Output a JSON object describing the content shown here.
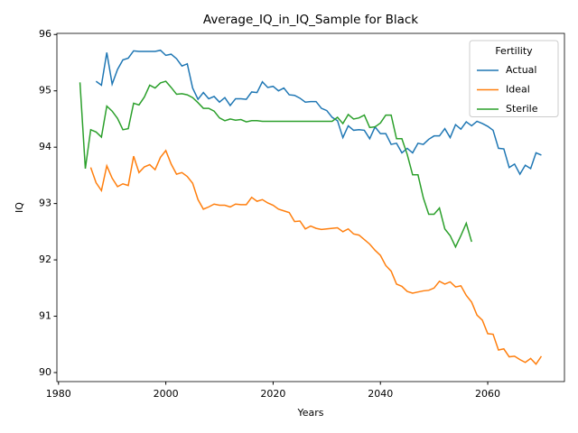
{
  "chart_data": {
    "type": "line",
    "title": "Average_IQ_in_IQ_Sample for Black",
    "x_label": "Years",
    "y_label": "IQ",
    "x": [
      1984,
      1985,
      1986,
      1987,
      1988,
      1989,
      1990,
      1991,
      1992,
      1993,
      1994,
      1995,
      1996,
      1997,
      1998,
      1999,
      2000,
      2001,
      2002,
      2003,
      2004,
      2005,
      2006,
      2007,
      2008,
      2009,
      2010,
      2011,
      2012,
      2013,
      2014,
      2015,
      2016,
      2017,
      2018,
      2019,
      2020,
      2021,
      2022,
      2023,
      2024,
      2025,
      2026,
      2027,
      2028,
      2029,
      2030,
      2031,
      2032,
      2033,
      2034,
      2035,
      2036,
      2037,
      2038,
      2039,
      2040,
      2041,
      2042,
      2043,
      2044,
      2045,
      2046,
      2047,
      2048,
      2049,
      2050,
      2051,
      2052,
      2053,
      2054,
      2055,
      2056,
      2057,
      2058,
      2059,
      2060,
      2061,
      2062,
      2063,
      2064,
      2065,
      2066,
      2067,
      2068,
      2069,
      2070
    ],
    "series": [
      {
        "name": "Actual",
        "color": "#1f77b4",
        "values": [
          null,
          null,
          null,
          95.17,
          95.1,
          95.68,
          95.12,
          95.38,
          95.55,
          95.58,
          95.71,
          95.7,
          95.7,
          95.7,
          95.7,
          95.72,
          95.63,
          95.65,
          95.57,
          95.44,
          95.48,
          95.05,
          94.85,
          94.97,
          94.86,
          94.9,
          94.8,
          94.88,
          94.74,
          94.86,
          94.86,
          94.85,
          94.98,
          94.97,
          95.16,
          95.06,
          95.08,
          95.0,
          95.05,
          94.93,
          94.92,
          94.87,
          94.8,
          94.81,
          94.81,
          94.69,
          94.65,
          94.53,
          94.47,
          94.17,
          94.38,
          94.3,
          94.31,
          94.3,
          94.15,
          94.36,
          94.24,
          94.24,
          94.05,
          94.07,
          93.9,
          93.98,
          93.9,
          94.07,
          94.05,
          94.14,
          94.2,
          94.2,
          94.33,
          94.17,
          94.4,
          94.32,
          94.45,
          94.38,
          94.46,
          94.42,
          94.37,
          94.3,
          93.98,
          93.97,
          93.64,
          93.7,
          93.52,
          93.68,
          93.62,
          93.9,
          93.86
        ]
      },
      {
        "name": "Ideal",
        "color": "#ff7f0e",
        "values": [
          null,
          null,
          93.64,
          93.37,
          93.23,
          93.67,
          93.45,
          93.3,
          93.35,
          93.32,
          93.84,
          93.55,
          93.65,
          93.69,
          93.6,
          93.82,
          93.94,
          93.7,
          93.52,
          93.55,
          93.48,
          93.36,
          93.07,
          92.9,
          92.94,
          92.99,
          92.97,
          92.97,
          92.94,
          92.99,
          92.98,
          92.98,
          93.11,
          93.04,
          93.07,
          93.01,
          92.97,
          92.9,
          92.87,
          92.84,
          92.68,
          92.69,
          92.55,
          92.6,
          92.56,
          92.54,
          92.55,
          92.56,
          92.57,
          92.5,
          92.55,
          92.46,
          92.44,
          92.36,
          92.28,
          92.17,
          92.08,
          91.9,
          91.8,
          91.57,
          91.53,
          91.44,
          91.41,
          91.43,
          91.45,
          91.46,
          91.5,
          91.62,
          91.57,
          91.61,
          91.52,
          91.54,
          91.37,
          91.25,
          91.02,
          90.93,
          90.69,
          90.68,
          90.4,
          90.42,
          90.28,
          90.29,
          90.23,
          90.18,
          90.25,
          90.15,
          90.29
        ]
      },
      {
        "name": "Sterile",
        "color": "#2ca02c",
        "values": [
          95.15,
          93.62,
          94.31,
          94.27,
          94.18,
          94.73,
          94.64,
          94.51,
          94.31,
          94.33,
          94.78,
          94.75,
          94.89,
          95.1,
          95.05,
          95.14,
          95.17,
          95.06,
          94.94,
          94.95,
          94.93,
          94.88,
          94.79,
          94.69,
          94.69,
          94.64,
          94.52,
          94.47,
          94.5,
          94.48,
          94.49,
          94.45,
          94.47,
          94.47,
          94.46,
          94.46,
          94.46,
          94.46,
          94.46,
          94.46,
          94.46,
          94.46,
          94.46,
          94.46,
          94.46,
          94.46,
          94.46,
          94.46,
          94.53,
          94.42,
          94.58,
          94.5,
          94.52,
          94.57,
          94.35,
          94.36,
          94.43,
          94.57,
          94.57,
          94.15,
          94.15,
          93.87,
          93.51,
          93.51,
          93.1,
          92.81,
          92.81,
          92.92,
          92.55,
          92.43,
          92.23,
          92.43,
          92.65,
          92.32,
          null,
          null,
          null,
          null,
          null,
          null,
          null,
          null,
          null,
          null,
          null,
          null,
          null
        ]
      }
    ],
    "legend_title": "Fertility",
    "legend": "upper right",
    "xlim": [
      1979.7,
      2074.3
    ],
    "xticks": [
      1980,
      2000,
      2020,
      2040,
      2060
    ],
    "ylim": [
      89.84,
      96.02
    ],
    "yticks": [
      90,
      91,
      92,
      93,
      94,
      95,
      96
    ]
  }
}
